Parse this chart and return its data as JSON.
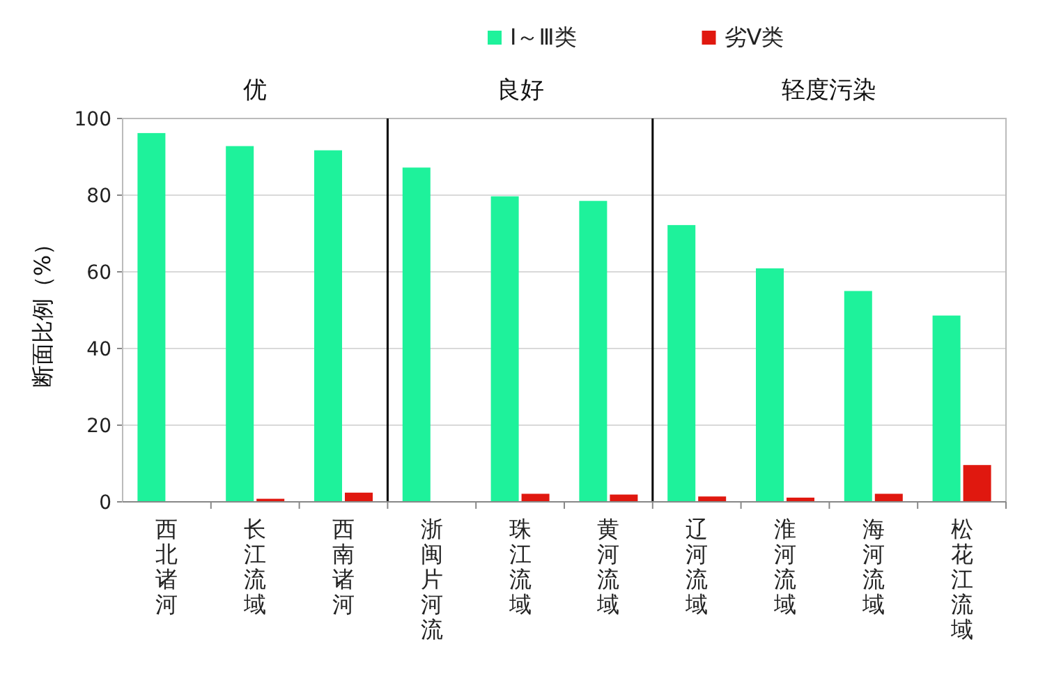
{
  "chart_data": {
    "type": "bar",
    "ylabel": "断面比例（%）",
    "categories": [
      "西北诸河",
      "长江流域",
      "西南诸河",
      "浙闽片河流",
      "珠江流域",
      "黄河流域",
      "辽河流域",
      "淮河流域",
      "海河流域",
      "松花江流域"
    ],
    "series": [
      {
        "name": "Ⅰ～Ⅲ类",
        "color": "#1ef29b",
        "values": [
          96.2,
          92.8,
          91.7,
          87.2,
          79.7,
          78.5,
          72.2,
          60.9,
          55.0,
          48.6
        ]
      },
      {
        "name": "劣Ⅴ类",
        "color": "#e0180f",
        "values": [
          0,
          0.8,
          2.4,
          0,
          2.1,
          1.9,
          1.4,
          1.1,
          2.1,
          9.6
        ]
      }
    ],
    "ylim": [
      0,
      100
    ],
    "yticks": [
      0,
      20,
      40,
      60,
      80,
      100
    ],
    "grid": "y",
    "legend": "top right",
    "annotations": [
      "优",
      "良好",
      "轻度污染"
    ]
  }
}
